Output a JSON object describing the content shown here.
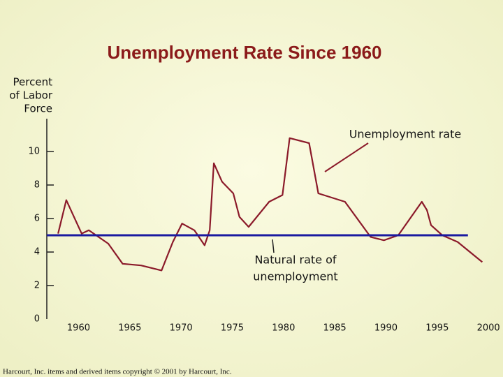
{
  "chart_data": {
    "type": "line",
    "title": "Unemployment Rate Since 1960",
    "y_label_lines": [
      "Percent",
      "of Labor",
      "Force"
    ],
    "xlim": [
      1956.9,
      2000.4
    ],
    "xticks": [
      1960,
      1965,
      1970,
      1975,
      1980,
      1985,
      1990,
      1995,
      2000
    ],
    "ylim": [
      0,
      12
    ],
    "yticks": [
      0,
      2,
      4,
      6,
      8,
      10
    ],
    "series": [
      {
        "color": "#8b1a2a",
        "x": [
          1958.0,
          1958.8,
          1960.3,
          1961.0,
          1962.9,
          1964.3,
          1966.1,
          1968.1,
          1969.2,
          1970.1,
          1971.3,
          1972.3,
          1972.8,
          1973.2,
          1974.0,
          1975.1,
          1975.7,
          1976.6,
          1978.6,
          1979.9,
          1980.6,
          1982.5,
          1983.4,
          1986.0,
          1988.5,
          1989.8,
          1991.2,
          1993.5,
          1994.0,
          1994.4,
          1995.5,
          1997.0,
          1999.4
        ],
        "values": [
          5.1,
          7.1,
          5.1,
          5.3,
          4.5,
          3.3,
          3.2,
          2.9,
          4.6,
          5.7,
          5.3,
          4.4,
          5.3,
          9.3,
          8.2,
          7.5,
          6.1,
          5.5,
          7.0,
          7.4,
          10.8,
          10.5,
          7.5,
          7.0,
          4.9,
          4.7,
          5.0,
          7.0,
          6.5,
          5.6,
          5.0,
          4.6,
          3.4
        ]
      },
      {
        "color": "#1a1aa0",
        "x": [
          1956.9,
          1998.0
        ],
        "values": [
          5.0,
          5.0
        ]
      }
    ],
    "annotations": [
      {
        "lines": [
          "Unemployment rate"
        ]
      },
      {
        "lines": [
          "Natural rate of",
          "unemployment"
        ]
      }
    ],
    "footer": "Harcourt, Inc. items and derived items copyright © 2001 by Harcourt, Inc."
  }
}
